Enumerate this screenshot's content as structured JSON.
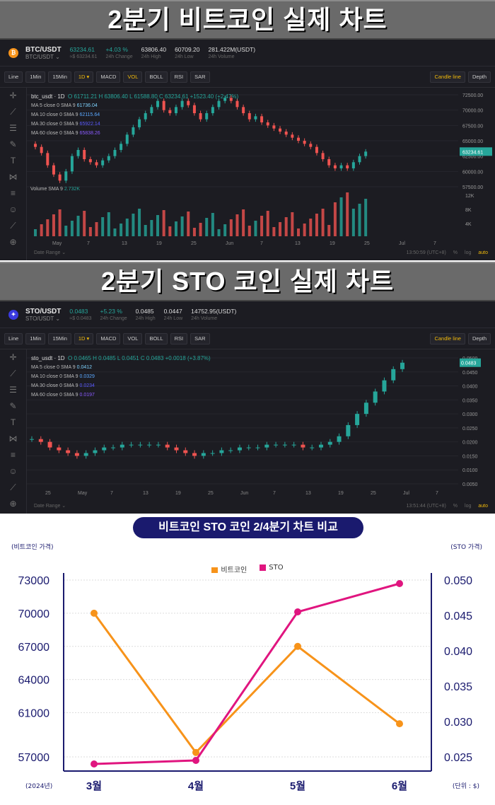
{
  "banner1": {
    "title": "2분기 비트코인 실제 차트"
  },
  "banner2": {
    "title": "2분기 STO 코인 실제 차트"
  },
  "btc": {
    "pair": "BTC/USDT",
    "sub": "BTC/USDT ⌄",
    "price": "63234.61",
    "price_sub": "≈$ 63234.61",
    "change": "+4.03 %",
    "change_label": "24h Change",
    "high": "63806.40",
    "high_label": "24h High",
    "low": "60709.20",
    "low_label": "24h Low",
    "volume": "281.422M(USDT)",
    "volume_label": "24h Volume",
    "chart_title": "btc_usdt · 1D",
    "ohlc": "O 61711.21  H 63806.40  L 61588.80  C 63234.61  +1523.40 (+2.47%)",
    "ma5": "MA 5 close 0 SMA 9",
    "ma5_val": "61736.04",
    "ma10": "MA 10 close 0 SMA 9",
    "ma10_val": "62115.64",
    "ma30": "MA 30 close 0 SMA 9",
    "ma30_val": "65922.14",
    "ma60": "MA 60 close 0 SMA 9",
    "ma60_val": "65838.26",
    "vol_label": "Volume SMA 9",
    "vol_val": "2.732K",
    "y_ticks": [
      "72500.00",
      "70000.00",
      "67500.00",
      "65000.00",
      "62500.00",
      "60000.00",
      "57500.00"
    ],
    "price_tag": "63234.61",
    "vol_ticks": [
      "12K",
      "8K",
      "4K"
    ],
    "x_ticks": [
      "May",
      "7",
      "13",
      "19",
      "25",
      "Jun",
      "7",
      "13",
      "19",
      "25",
      "Jul",
      "7"
    ],
    "time": "13:50:59 (UTC+8)"
  },
  "sto": {
    "pair": "STO/USDT",
    "sub": "STO/USDT ⌄",
    "price": "0.0483",
    "price_sub": "≈$ 0.0483",
    "change": "+5.23 %",
    "change_label": "24h Change",
    "high": "0.0485",
    "high_label": "24h High",
    "low": "0.0447",
    "low_label": "24h Low",
    "volume": "14752.95(USDT)",
    "volume_label": "24h Volume",
    "chart_title": "sto_usdt · 1D",
    "ohlc": "O 0.0465  H 0.0485  L 0.0451  C 0.0483  +0.0018 (+3.87%)",
    "ma5": "MA 5 close 0 SMA 9",
    "ma5_val": "0.0412",
    "ma10": "MA 10 close 0 SMA 9",
    "ma10_val": "0.0329",
    "ma30": "MA 30 close 0 SMA 9",
    "ma30_val": "0.0234",
    "ma60": "MA 60 close 0 SMA 9",
    "ma60_val": "0.0197",
    "y_ticks": [
      "0.0500",
      "0.0450",
      "0.0400",
      "0.0350",
      "0.0300",
      "0.0250",
      "0.0200",
      "0.0150",
      "0.0100",
      "0.0050"
    ],
    "price_tag": "0.0483",
    "x_ticks": [
      "25",
      "May",
      "7",
      "13",
      "19",
      "25",
      "Jun",
      "7",
      "13",
      "19",
      "25",
      "Jul",
      "7"
    ],
    "time": "13:51:44 (UTC+8)"
  },
  "toolbar": {
    "items": [
      "Line",
      "1Min",
      "15Min",
      "1D ▾",
      "MACD",
      "VOL",
      "BOLL",
      "RSI",
      "SAR"
    ],
    "candle": "Candle line",
    "depth": "Depth"
  },
  "footer": {
    "date_range": "Date Range ⌄",
    "pct": "%",
    "log": "log",
    "auto": "auto"
  },
  "colors": {
    "up": "#26a69a",
    "down": "#ef5350",
    "btc_line": "#f7931a",
    "sto_line": "#e0157f",
    "axis": "#1a1a6e"
  },
  "chart_data": {
    "type": "line",
    "title": "비트코인 STO 코인 2/4분기 차트 비교",
    "categories": [
      "3월",
      "4월",
      "5월",
      "6월"
    ],
    "series": [
      {
        "name": "비트코인",
        "axis": "left",
        "values": [
          70000,
          57400,
          67000,
          60000
        ]
      },
      {
        "name": "STO",
        "axis": "right",
        "values": [
          0.024,
          0.0245,
          0.0455,
          0.0495
        ]
      }
    ],
    "y_left": {
      "label": "(비트코인 가격)",
      "ticks": [
        "73000",
        "70000",
        "67000",
        "64000",
        "61000",
        "57000"
      ],
      "range": [
        57000,
        73000
      ]
    },
    "y_right": {
      "label": "(STO 가격)",
      "ticks": [
        "0.050",
        "0.045",
        "0.040",
        "0.035",
        "0.030",
        "0.025"
      ],
      "range": [
        0.025,
        0.05
      ]
    },
    "x_note": "(2024년)",
    "unit_note": "(단위 : $)",
    "legend": "top-center",
    "grid": true
  }
}
